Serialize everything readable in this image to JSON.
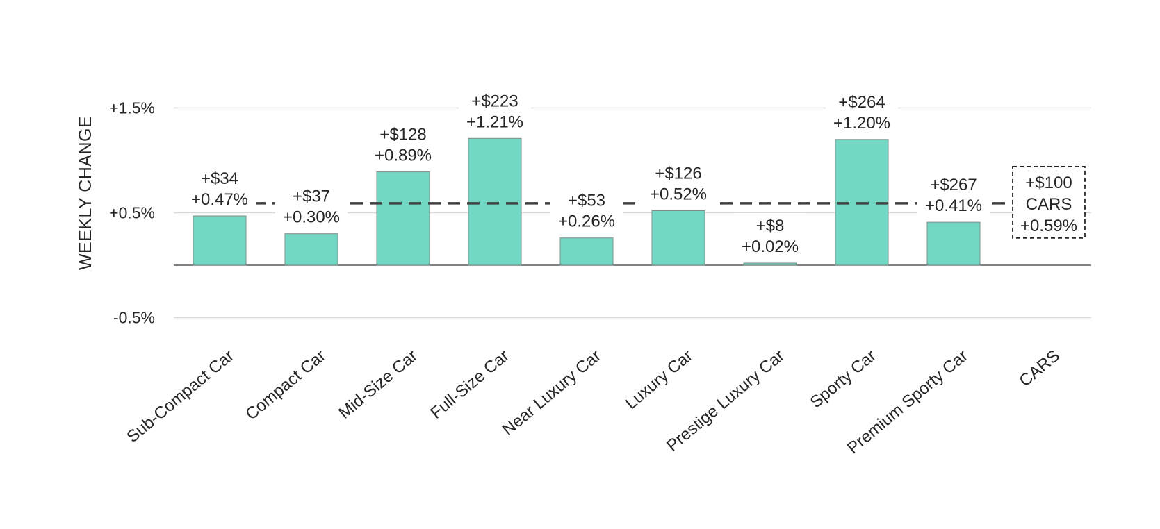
{
  "chart_data": {
    "type": "bar",
    "ylabel": "WEEKLY CHANGE",
    "ylim": [
      -0.7,
      1.6
    ],
    "yticks": [
      1.5,
      0.5,
      -0.5
    ],
    "ytick_labels": [
      "+1.5%",
      "+0.5%",
      "-0.5%"
    ],
    "grid": true,
    "categories": [
      "Sub-Compact Car",
      "Compact Car",
      "Mid-Size Car",
      "Full-Size Car",
      "Near Luxury Car",
      "Luxury Car",
      "Prestige Luxury Car",
      "Sporty Car",
      "Premium Sporty Car",
      "CARS"
    ],
    "values": [
      0.47,
      0.3,
      0.89,
      1.21,
      0.26,
      0.52,
      0.02,
      1.2,
      0.41,
      null
    ],
    "dollar_labels": [
      "+$34",
      "+$37",
      "+$128",
      "+$223",
      "+$53",
      "+$126",
      "+$8",
      "+$264",
      "+$267",
      "+$100"
    ],
    "percent_labels": [
      "+0.47%",
      "+0.30%",
      "+0.89%",
      "+1.21%",
      "+0.26%",
      "+0.52%",
      "+0.02%",
      "+1.20%",
      "+0.41%",
      "+0.59%"
    ],
    "average": {
      "value": 0.59,
      "dollar_label": "+$100",
      "name": "CARS",
      "percent_label": "+0.59%"
    },
    "colors": {
      "bar": "#72d8c3",
      "average_line": "#404040"
    }
  }
}
